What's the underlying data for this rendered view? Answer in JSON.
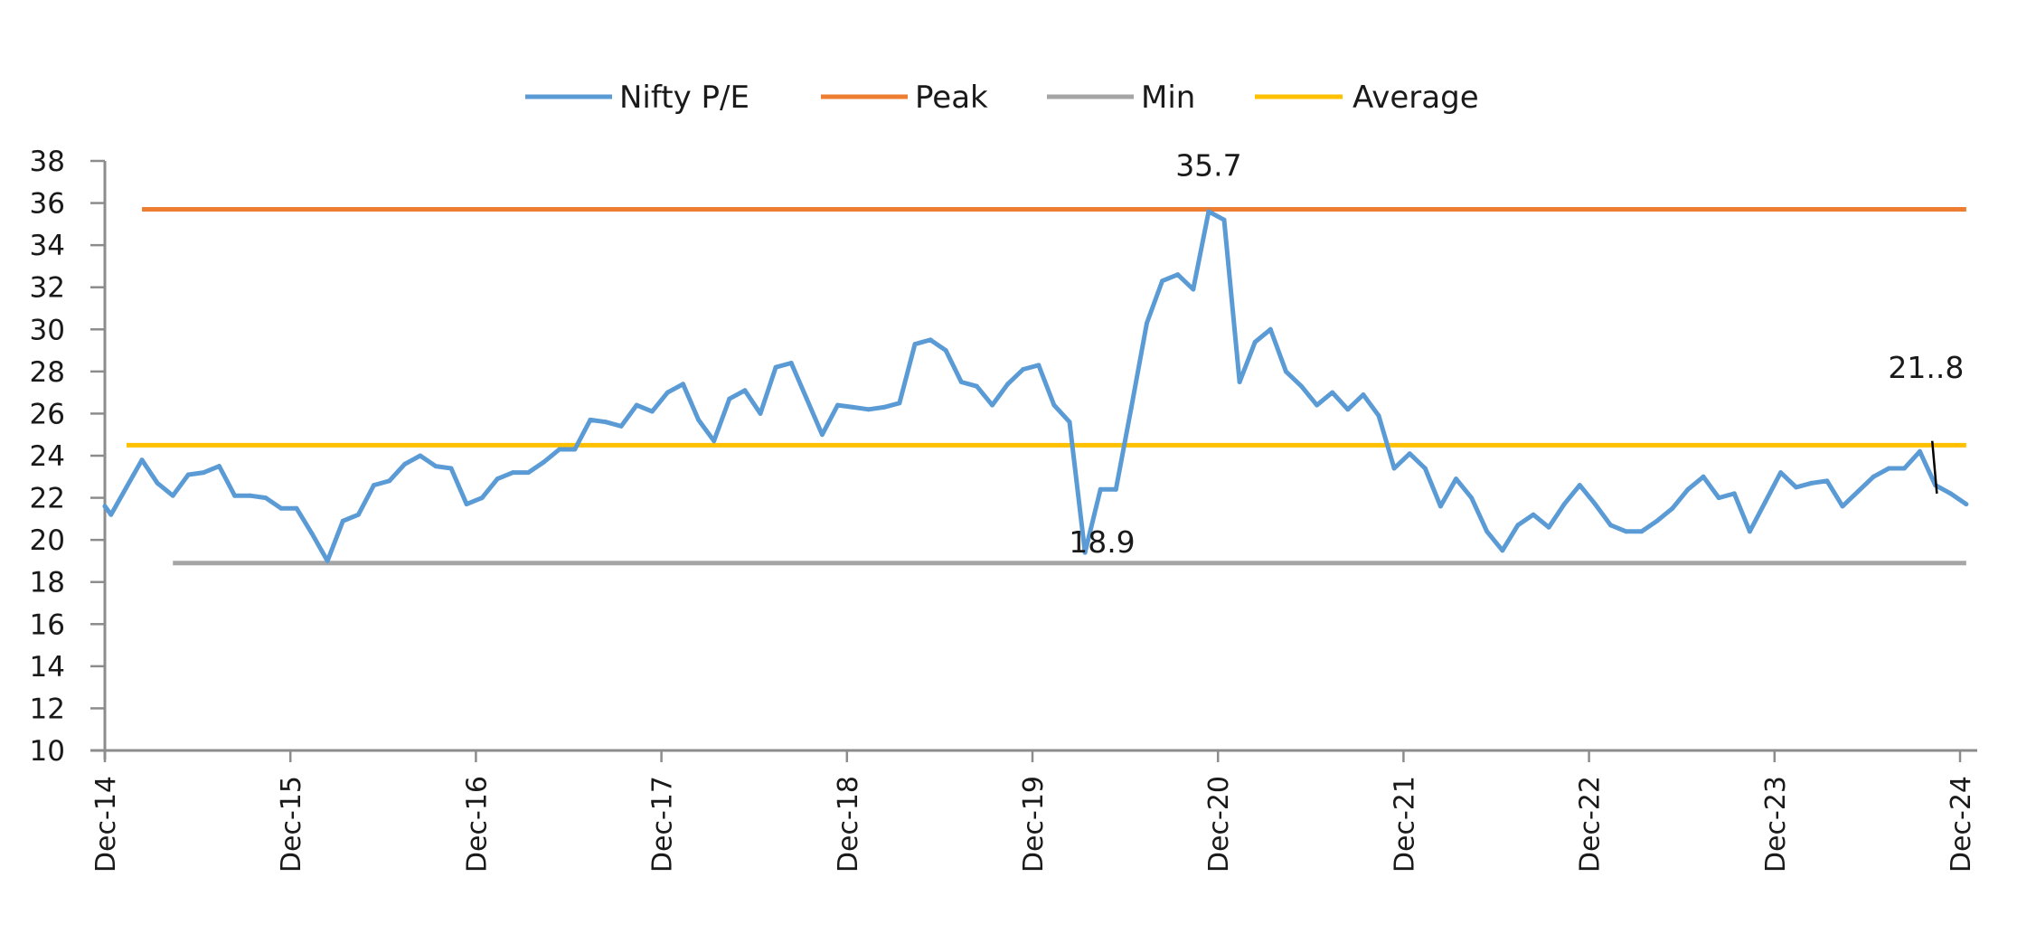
{
  "chart_data": {
    "type": "line",
    "title": "",
    "xlabel": "",
    "ylabel": "",
    "ylim": [
      10,
      38
    ],
    "yticks": [
      10,
      12,
      14,
      16,
      18,
      20,
      22,
      24,
      26,
      28,
      30,
      32,
      34,
      36,
      38
    ],
    "x_unit": "months since Dec-14",
    "xlim": [
      0,
      121
    ],
    "xticks": [
      {
        "x": 0,
        "label": "Dec-14"
      },
      {
        "x": 12,
        "label": "Dec-15"
      },
      {
        "x": 24,
        "label": "Dec-16"
      },
      {
        "x": 36,
        "label": "Dec-17"
      },
      {
        "x": 48,
        "label": "Dec-18"
      },
      {
        "x": 60,
        "label": "Dec-19"
      },
      {
        "x": 72,
        "label": "Dec-20"
      },
      {
        "x": 84,
        "label": "Dec-21"
      },
      {
        "x": 96,
        "label": "Dec-22"
      },
      {
        "x": 108,
        "label": "Dec-23"
      },
      {
        "x": 120,
        "label": "Dec-24"
      }
    ],
    "grid": false,
    "legend": {
      "position": "top-center",
      "entries": [
        {
          "key": "nifty",
          "label": "Nifty P/E",
          "color": "#5B9BD5"
        },
        {
          "key": "peak",
          "label": "Peak",
          "color": "#ED7D31"
        },
        {
          "key": "min",
          "label": "Min",
          "color": "#A5A5A5"
        },
        {
          "key": "average",
          "label": "Average",
          "color": "#FFC000"
        }
      ]
    },
    "series": [
      {
        "key": "nifty",
        "name": "Nifty P/E",
        "color": "#5B9BD5",
        "x_start": 0.4,
        "x_step": 1,
        "leading_point": {
          "x": 0,
          "y": 21.6
        },
        "values": [
          21.2,
          22.5,
          23.8,
          22.7,
          22.1,
          23.1,
          23.2,
          23.5,
          22.1,
          22.1,
          22.0,
          21.5,
          21.5,
          20.3,
          19.0,
          20.9,
          21.2,
          22.6,
          22.8,
          23.6,
          24.0,
          23.5,
          23.4,
          21.7,
          22.0,
          22.9,
          23.2,
          23.2,
          23.7,
          24.3,
          24.3,
          25.7,
          25.6,
          25.4,
          26.4,
          26.1,
          27.0,
          27.4,
          25.7,
          24.7,
          26.7,
          27.1,
          26.0,
          28.2,
          28.4,
          26.7,
          25.0,
          26.4,
          26.3,
          26.2,
          26.3,
          26.5,
          29.3,
          29.5,
          29.0,
          27.5,
          27.3,
          26.4,
          27.4,
          28.1,
          28.3,
          26.4,
          25.6,
          19.4,
          22.4,
          22.4,
          26.3,
          30.3,
          32.3,
          32.6,
          31.9,
          35.6,
          35.2,
          27.5,
          29.4,
          30.0,
          28.0,
          27.3,
          26.4,
          27.0,
          26.2,
          26.9,
          25.9,
          23.4,
          24.1,
          23.4,
          21.6,
          22.9,
          22.0,
          20.4,
          19.5,
          20.7,
          21.2,
          20.6,
          21.7,
          22.6,
          21.7,
          20.7,
          20.4,
          20.4,
          20.9,
          21.5,
          22.4,
          23.0,
          22.0,
          22.2,
          20.4,
          21.8,
          23.2,
          22.5,
          22.7,
          22.8,
          21.6,
          22.3,
          23.0,
          23.4,
          23.4,
          24.2,
          22.6,
          22.2,
          21.7
        ]
      },
      {
        "key": "peak",
        "name": "Peak",
        "color": "#ED7D31",
        "value": 35.7,
        "x_range": [
          2.4,
          120.4
        ]
      },
      {
        "key": "min",
        "name": "Min",
        "color": "#A5A5A5",
        "value": 18.9,
        "x_range": [
          4.4,
          120.4
        ]
      },
      {
        "key": "average",
        "name": "Average",
        "color": "#FFC000",
        "value": 24.5,
        "x_range": [
          1.4,
          120.4
        ]
      }
    ],
    "annotations": [
      {
        "key": "peak-label",
        "text": "35.7",
        "x": 71.4,
        "y": 37.3
      },
      {
        "key": "min-label",
        "text": "18.9",
        "x": 64.5,
        "y": 19.4
      },
      {
        "key": "latest-label",
        "text": "21..8",
        "x": 117.8,
        "y": 27.7,
        "leader": {
          "x1": 118.2,
          "y1": 24.7,
          "x2": 118.5,
          "y2": 22.2
        }
      }
    ]
  }
}
